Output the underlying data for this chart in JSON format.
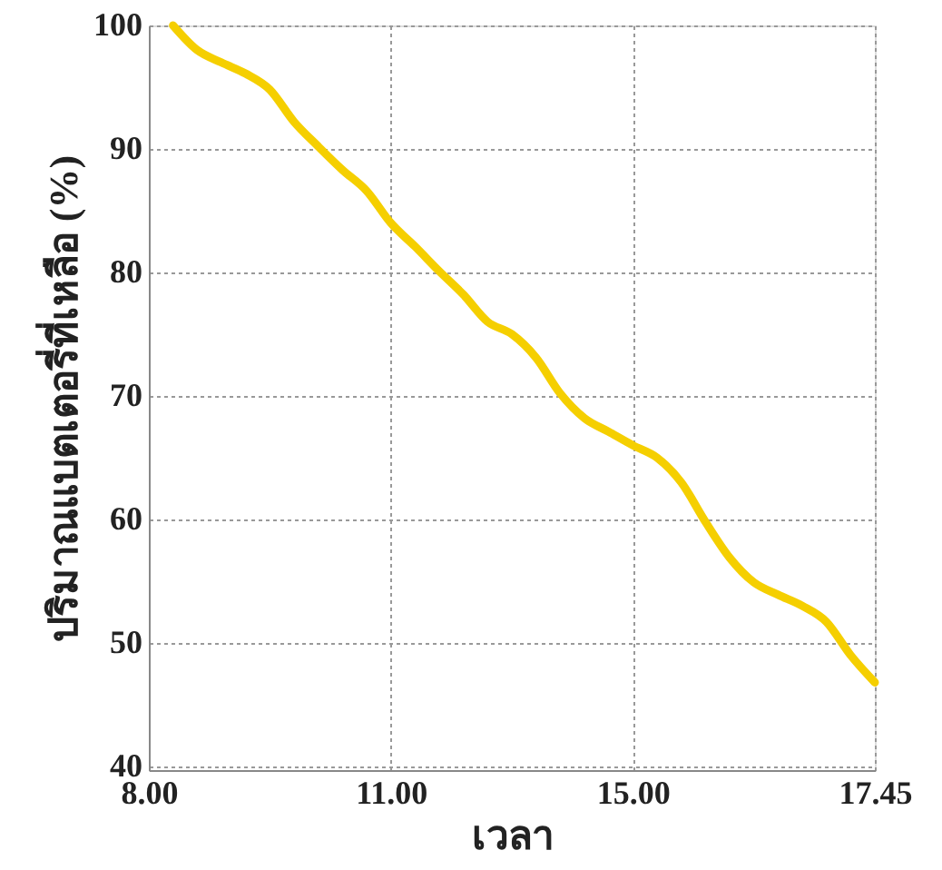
{
  "chart_data": {
    "type": "line",
    "xlabel": "เวลา",
    "ylabel": "ปริมาณแบตเตอรี่ที่เหลือ (%)",
    "categories": [
      "8.00",
      null,
      null,
      null,
      null,
      null,
      null,
      null,
      null,
      null,
      "11.00",
      null,
      null,
      null,
      null,
      null,
      null,
      null,
      null,
      null,
      "15.00",
      null,
      null,
      null,
      null,
      null,
      null,
      null,
      null,
      null,
      "17.45"
    ],
    "series": [
      {
        "color": "#f5cf00",
        "values": [
          null,
          100,
          98.0,
          97.0,
          96.1,
          94.8,
          92.2,
          90.2,
          88.3,
          86.6,
          84.0,
          82.1,
          80.1,
          78.2,
          76.0,
          75.0,
          73.1,
          70.2,
          68.2,
          67.1,
          66.0,
          65.0,
          63.0,
          59.8,
          56.9,
          54.9,
          53.9,
          53.0,
          51.7,
          49.0,
          46.8
        ]
      }
    ],
    "ylim": [
      39.7,
      100
    ],
    "yticks": [
      40,
      50,
      60,
      70,
      80,
      90,
      100
    ],
    "grid": true,
    "marker": "none",
    "line_style": "solid"
  }
}
